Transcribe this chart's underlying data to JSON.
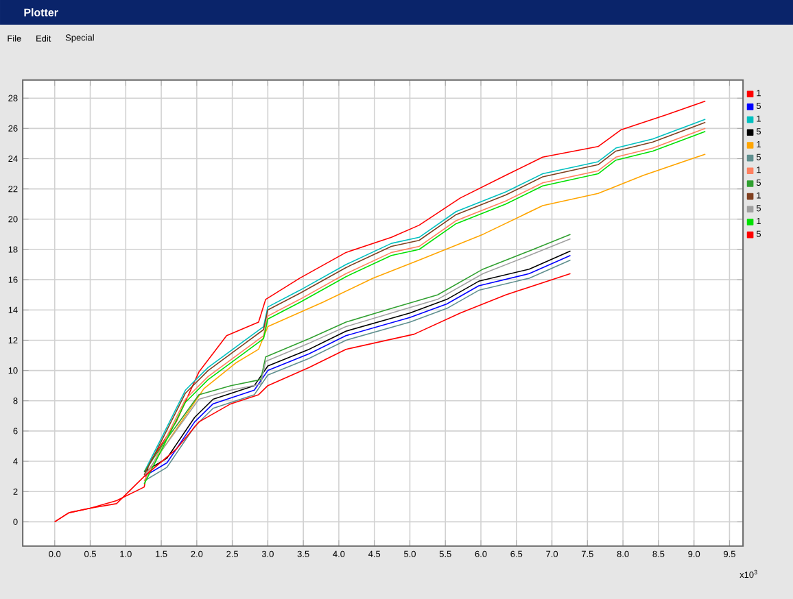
{
  "chart_data": {
    "type": "line",
    "title": "Plotter",
    "annotations": [
      "File",
      "Edit",
      "Special"
    ],
    "xlabel": "x10$^{3}$",
    "xlim": [
      -0.45,
      9.69
    ],
    "ylim": [
      -1.6,
      29.2
    ],
    "xticks": [
      {
        "value": 0,
        "label": "0.0"
      },
      0.5,
      {
        "value": 1,
        "label": "1.0"
      },
      1.5,
      {
        "value": 2,
        "label": "2.0"
      },
      2.5,
      {
        "value": 3,
        "label": "3.0"
      },
      3.5,
      {
        "value": 4,
        "label": "4.0"
      },
      4.5,
      {
        "value": 5,
        "label": "5.0"
      },
      5.5,
      {
        "value": 6,
        "label": "6.0"
      },
      6.5,
      {
        "value": 7,
        "label": "7.0"
      },
      7.5,
      {
        "value": 8,
        "label": "8.0"
      },
      8.5,
      {
        "value": 9,
        "label": "9.0"
      },
      9.5
    ],
    "yticks": [
      0,
      2,
      4,
      6,
      8,
      10,
      12,
      14,
      16,
      18,
      20,
      22,
      24,
      26,
      28
    ],
    "grid": true,
    "legend": "right",
    "marker": "none",
    "line_style": "solid",
    "series": [
      {
        "name": "1",
        "color": "#ff0000",
        "x": [
          0,
          0.2,
          0.5,
          0.87,
          1.26,
          1.32,
          1.71,
          2.03,
          2.42,
          2.87,
          2.97,
          3.45,
          4.1,
          4.74,
          5.13,
          5.71,
          6.35,
          6.87,
          7.65,
          7.97,
          8.61,
          9.16
        ],
        "values": [
          0,
          0.6,
          0.9,
          1.4,
          2.3,
          3.8,
          6.6,
          9.9,
          12.3,
          13.2,
          14.7,
          16.1,
          17.8,
          18.8,
          19.6,
          21.4,
          22.9,
          24.1,
          24.8,
          25.9,
          26.9,
          27.8
        ]
      },
      {
        "name": "5",
        "color": "#0000ff",
        "x": [
          1.26,
          1.58,
          1.97,
          2.23,
          2.81,
          3.0,
          3.58,
          4.1,
          5.0,
          5.52,
          5.97,
          6.68,
          7.26
        ],
        "values": [
          3.0,
          3.9,
          6.6,
          7.8,
          8.7,
          10.0,
          11.1,
          12.3,
          13.5,
          14.4,
          15.6,
          16.4,
          17.6
        ]
      },
      {
        "name": "1",
        "color": "#00c0c0",
        "x": [
          1.26,
          1.52,
          1.84,
          2.16,
          2.68,
          2.94,
          3.0,
          3.45,
          4.1,
          4.74,
          5.13,
          5.65,
          6.35,
          6.87,
          7.65,
          7.9,
          8.42,
          9.16
        ],
        "values": [
          3.3,
          5.7,
          8.7,
          10.2,
          12.0,
          12.9,
          14.2,
          15.3,
          17.0,
          18.4,
          18.8,
          20.5,
          21.8,
          23.0,
          23.8,
          24.7,
          25.3,
          26.6
        ]
      },
      {
        "name": "5",
        "color": "#000000",
        "x": [
          1.26,
          1.58,
          1.97,
          2.23,
          2.81,
          3.0,
          3.58,
          4.1,
          5.0,
          5.52,
          5.97,
          6.68,
          7.26
        ],
        "values": [
          3.3,
          4.2,
          6.9,
          8.1,
          9.0,
          10.3,
          11.4,
          12.6,
          13.8,
          14.7,
          15.9,
          16.7,
          17.9
        ]
      },
      {
        "name": "1",
        "color": "#ffa500",
        "x": [
          1.26,
          1.65,
          2.1,
          2.55,
          2.87,
          3.0,
          3.77,
          4.48,
          5.13,
          6.03,
          6.87,
          7.65,
          8.29,
          9.16
        ],
        "values": [
          3.0,
          5.7,
          8.8,
          10.5,
          11.4,
          12.9,
          14.5,
          16.1,
          17.3,
          19.0,
          20.9,
          21.7,
          22.9,
          24.3
        ]
      },
      {
        "name": "5",
        "color": "#5f8f8f",
        "x": [
          1.26,
          1.58,
          1.97,
          2.23,
          2.81,
          3.0,
          3.58,
          4.1,
          5.0,
          5.52,
          5.97,
          6.68,
          7.26
        ],
        "values": [
          2.7,
          3.6,
          6.3,
          7.5,
          8.4,
          9.7,
          10.8,
          12.0,
          13.2,
          14.1,
          15.3,
          16.1,
          17.3
        ]
      },
      {
        "name": "1",
        "color": "#ff8060",
        "x": [
          1.26,
          1.52,
          1.84,
          2.16,
          2.68,
          2.94,
          3.0,
          3.45,
          4.1,
          4.74,
          5.13,
          5.65,
          6.35,
          6.87,
          7.65,
          7.9,
          8.42,
          9.16
        ],
        "values": [
          2.7,
          5.1,
          8.1,
          9.6,
          11.4,
          12.3,
          13.6,
          14.7,
          16.4,
          17.8,
          18.2,
          19.9,
          21.2,
          22.4,
          23.2,
          24.1,
          24.7,
          26.0
        ]
      },
      {
        "name": "5",
        "color": "#30a030",
        "x": [
          1.26,
          1.52,
          2.03,
          2.48,
          2.9,
          2.97,
          3.58,
          4.1,
          4.74,
          5.39,
          6.03,
          6.68,
          7.26
        ],
        "values": [
          3.3,
          5.1,
          8.4,
          9.0,
          9.4,
          10.9,
          12.1,
          13.2,
          14.1,
          15.0,
          16.7,
          17.9,
          19.0
        ]
      },
      {
        "name": "1",
        "color": "#804020",
        "x": [
          1.26,
          1.52,
          1.84,
          2.16,
          2.68,
          2.94,
          3.0,
          3.45,
          4.1,
          4.74,
          5.13,
          5.65,
          6.35,
          6.87,
          7.65,
          7.9,
          8.42,
          9.16
        ],
        "values": [
          3.1,
          5.5,
          8.5,
          10.0,
          11.8,
          12.7,
          14.0,
          15.1,
          16.8,
          18.2,
          18.6,
          20.3,
          21.6,
          22.8,
          23.6,
          24.5,
          25.1,
          26.4
        ]
      },
      {
        "name": "5",
        "color": "#a0a0a0",
        "x": [
          1.26,
          1.52,
          2.03,
          2.48,
          2.9,
          2.97,
          3.58,
          4.1,
          4.74,
          5.39,
          6.03,
          6.68,
          7.26
        ],
        "values": [
          3.0,
          4.8,
          8.1,
          8.7,
          9.1,
          10.6,
          11.8,
          12.9,
          13.8,
          14.7,
          16.4,
          17.6,
          18.7
        ]
      },
      {
        "name": "1",
        "color": "#00e000",
        "x": [
          1.26,
          1.52,
          1.84,
          2.16,
          2.68,
          2.94,
          3.0,
          3.45,
          4.1,
          4.74,
          5.13,
          5.65,
          6.35,
          6.87,
          7.65,
          7.9,
          8.42,
          9.16
        ],
        "values": [
          2.5,
          4.9,
          7.9,
          9.4,
          11.2,
          12.1,
          13.4,
          14.5,
          16.2,
          17.6,
          18.0,
          19.7,
          21.0,
          22.2,
          23.0,
          23.9,
          24.5,
          25.8
        ]
      },
      {
        "name": "5",
        "color": "#ff0000",
        "x": [
          0,
          0.2,
          0.5,
          0.87,
          1.26,
          1.71,
          2.03,
          2.48,
          2.87,
          3.0,
          3.58,
          4.1,
          5.06,
          5.71,
          6.35,
          7.26
        ],
        "values": [
          0,
          0.6,
          0.9,
          1.2,
          3.0,
          4.8,
          6.6,
          7.8,
          8.4,
          9.0,
          10.2,
          11.4,
          12.4,
          13.8,
          15.0,
          16.4
        ]
      }
    ]
  }
}
